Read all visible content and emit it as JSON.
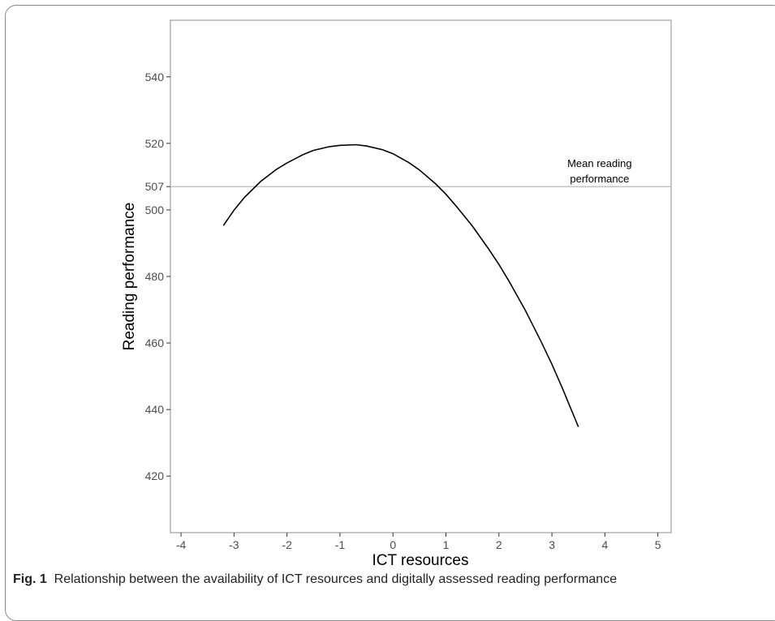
{
  "caption": {
    "label": "Fig. 1",
    "text": "Relationship between the availability of ICT resources and digitally assessed reading performance"
  },
  "chart_data": {
    "type": "line",
    "xlabel": "ICT resources",
    "ylabel": "Reading performance",
    "xlim": [
      -4.2,
      5.25
    ],
    "ylim": [
      403,
      557
    ],
    "xticks": [
      -4,
      -3,
      -2,
      -1,
      0,
      1,
      2,
      3,
      4,
      5
    ],
    "yticks": [
      420,
      440,
      460,
      480,
      500,
      507,
      520,
      540
    ],
    "grid": false,
    "series": [
      {
        "x": [
          -3.2,
          -3.0,
          -2.8,
          -2.5,
          -2.2,
          -2.0,
          -1.7,
          -1.5,
          -1.2,
          -1.0,
          -0.7,
          -0.5,
          -0.2,
          0.0,
          0.3,
          0.5,
          0.8,
          1.0,
          1.2,
          1.5,
          1.8,
          2.0,
          2.2,
          2.5,
          2.8,
          3.0,
          3.2,
          3.5
        ],
        "y": [
          495.3,
          499.9,
          503.8,
          508.5,
          512.2,
          514.1,
          516.6,
          517.9,
          519.0,
          519.4,
          519.6,
          519.2,
          518.1,
          516.9,
          514.2,
          512.0,
          507.9,
          504.7,
          501.0,
          495.1,
          488.4,
          483.6,
          478.3,
          469.8,
          460.3,
          453.6,
          446.3,
          434.8
        ]
      }
    ],
    "reference_line": {
      "y": 507,
      "label": "Mean reading performance",
      "color": "#bfbfbf"
    },
    "annotation": {
      "lines": [
        "Mean reading",
        "performance"
      ]
    }
  }
}
